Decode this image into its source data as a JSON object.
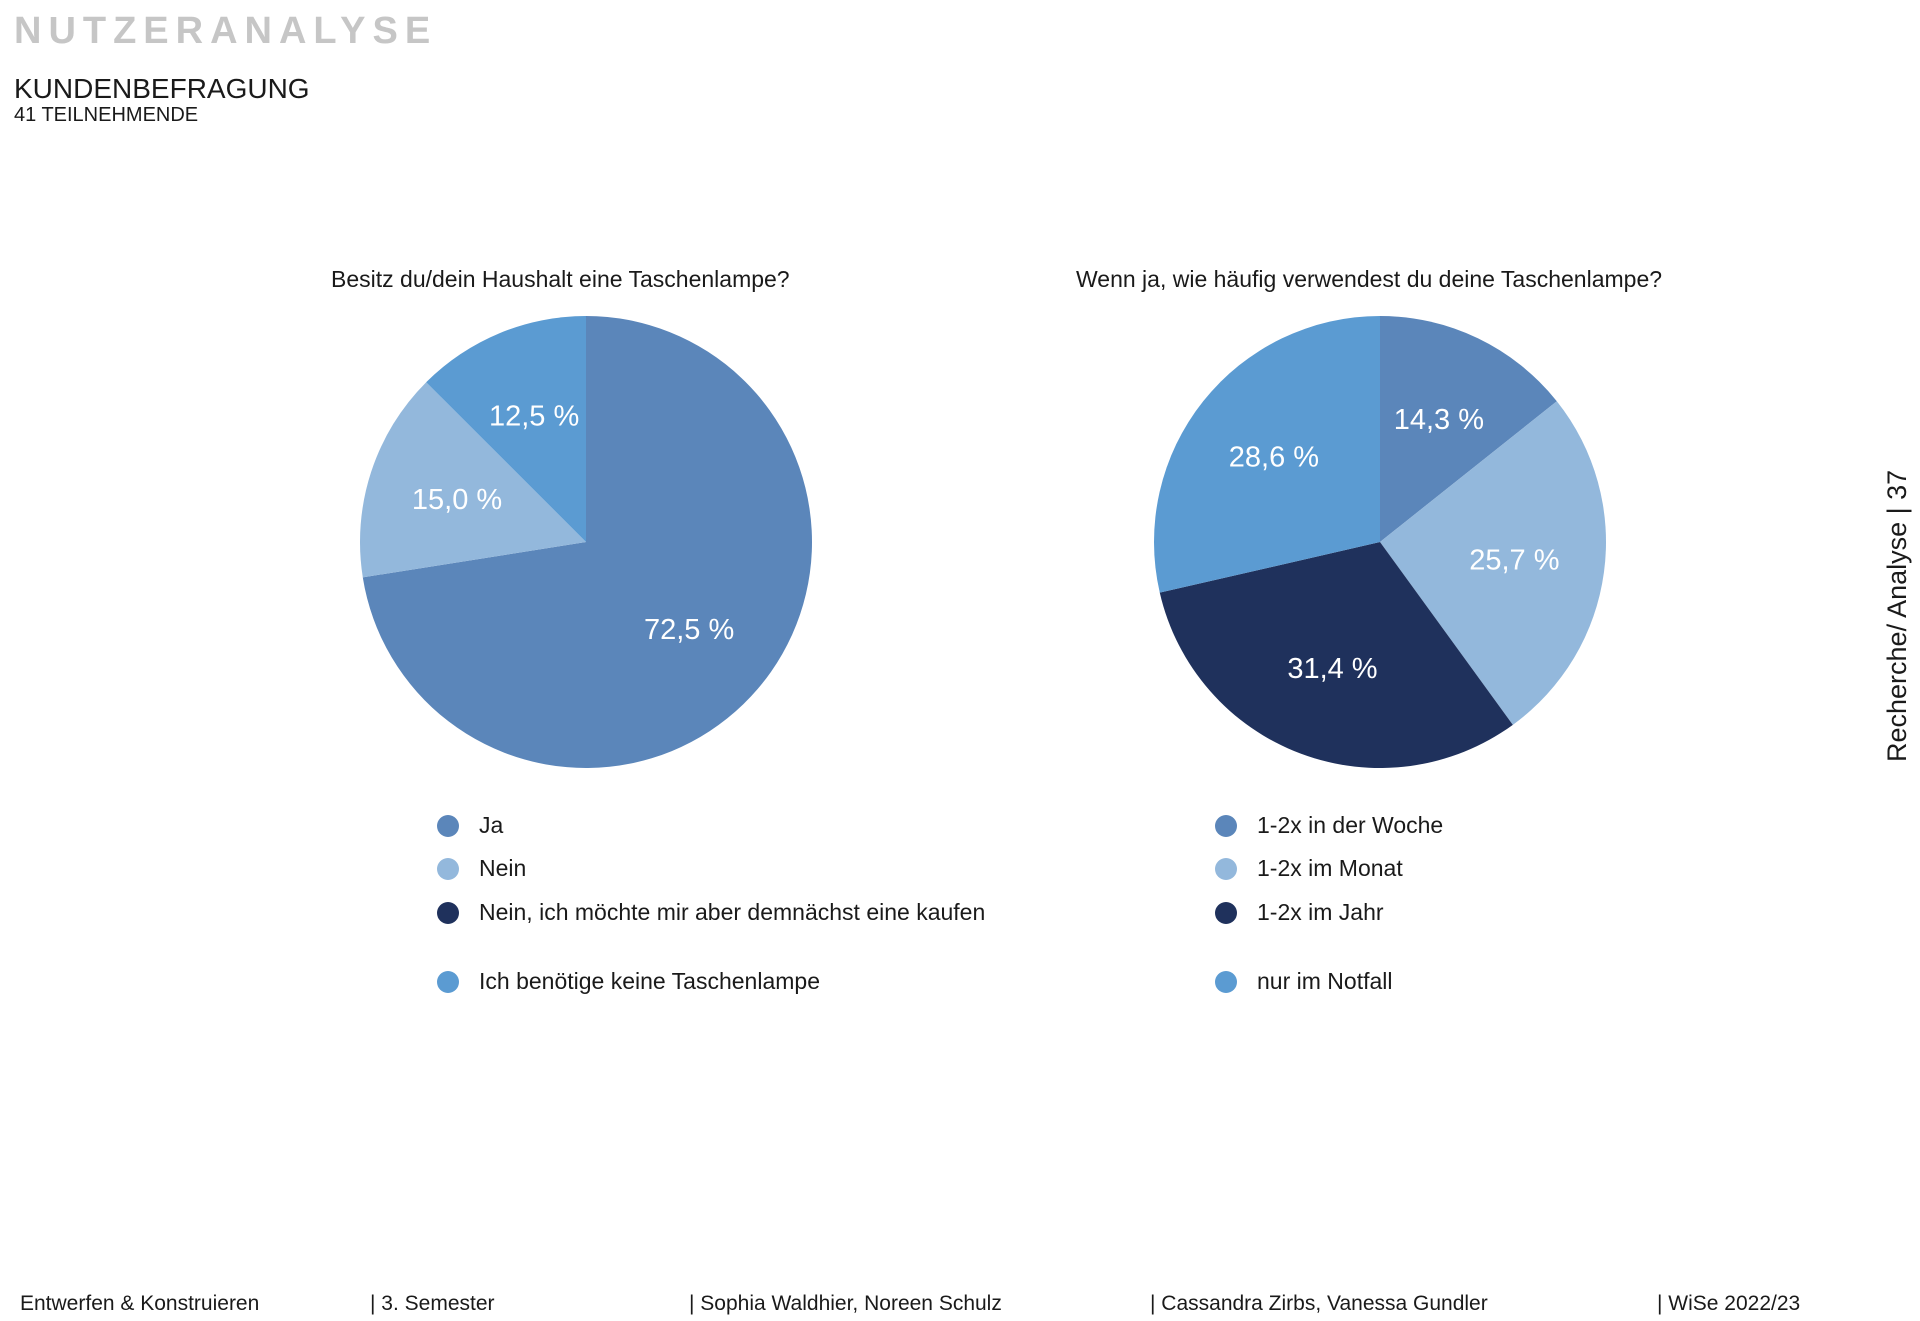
{
  "header": {
    "section": "NUTZERANALYSE",
    "title": "KUNDENBEFRAGUNG",
    "subtitle": "41 TEILNEHMENDE"
  },
  "side_label": "Recherche/ Analyse | 37",
  "footer": [
    "Entwerfen & Konstruieren",
    "|  3. Semester",
    "| Sophia Waldhier, Noreen Schulz",
    "| Cassandra Zirbs, Vanessa Gundler",
    "| WiSe 2022/23"
  ],
  "colors": {
    "medium_blue": "#5b86ba",
    "light_blue": "#93b8dc",
    "dark_navy": "#1f315c",
    "bright_blue": "#5b9bd2"
  },
  "chart_data": [
    {
      "type": "pie",
      "title": "Besitz du/dein Haushalt eine Taschenlampe?",
      "slices": [
        {
          "name": "Ja",
          "value": 72.5,
          "label": "72,5 %",
          "color": "#5b86ba"
        },
        {
          "name": "Nein",
          "value": 15.0,
          "label": "15,0 %",
          "color": "#93b8dc"
        },
        {
          "name": "Ich benötige keine Taschenlampe",
          "value": 12.5,
          "label": "12,5 %",
          "color": "#5b9bd2"
        }
      ],
      "legend": [
        {
          "name": "Ja",
          "color": "#5b86ba"
        },
        {
          "name": "Nein",
          "color": "#93b8dc"
        },
        {
          "name": "Nein, ich möchte mir aber demnächst eine kaufen",
          "color": "#1f315c"
        },
        {
          "name": "Ich benötige keine Taschenlampe",
          "color": "#5b9bd2"
        }
      ],
      "legend_placement": "bottom"
    },
    {
      "type": "pie",
      "title": "Wenn ja, wie häufig verwendest du deine Taschenlampe?",
      "slices": [
        {
          "name": "1-2x in der Woche",
          "value": 14.3,
          "label": "14,3 %",
          "color": "#5b86ba"
        },
        {
          "name": "1-2x im Monat",
          "value": 25.7,
          "label": "25,7 %",
          "color": "#93b8dc"
        },
        {
          "name": "1-2x im Jahr",
          "value": 31.4,
          "label": "31,4 %",
          "color": "#1f315c"
        },
        {
          "name": "nur im Notfall",
          "value": 28.6,
          "label": "28,6 %",
          "color": "#5b9bd2"
        }
      ],
      "legend": [
        {
          "name": "1-2x in der Woche",
          "color": "#5b86ba"
        },
        {
          "name": "1-2x im Monat",
          "color": "#93b8dc"
        },
        {
          "name": "1-2x im Jahr",
          "color": "#1f315c"
        },
        {
          "name": "nur im Notfall",
          "color": "#5b9bd2"
        }
      ],
      "legend_placement": "bottom"
    }
  ]
}
